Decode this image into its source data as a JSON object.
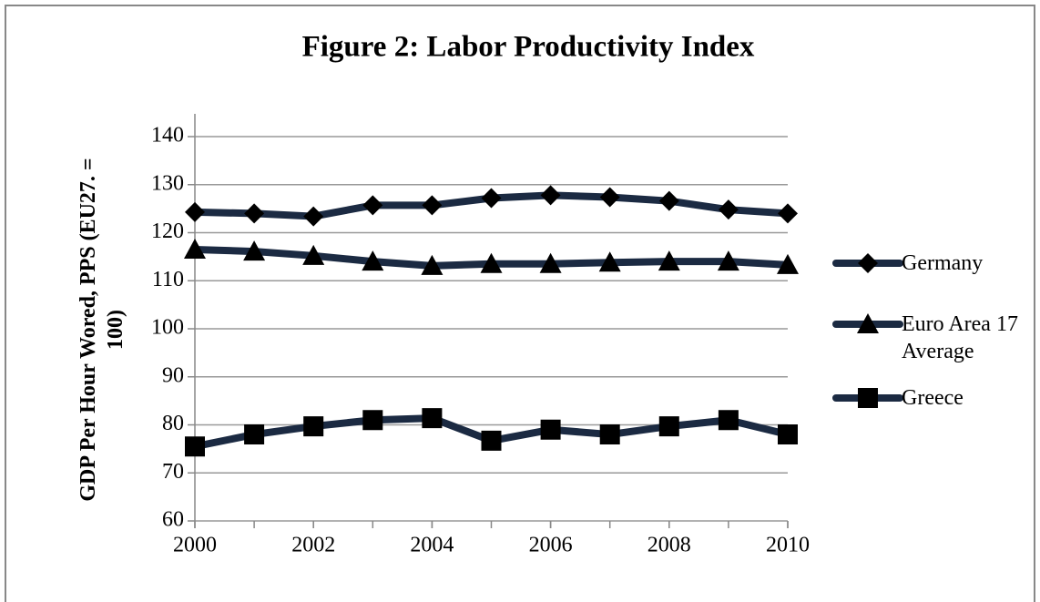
{
  "chart_data": {
    "type": "line",
    "title": "Figure 2: Labor Productivity Index",
    "ylabel": "GDP Per Hour Wored, PPS (EU27. = 100)",
    "x": [
      2000,
      2001,
      2002,
      2003,
      2004,
      2005,
      2006,
      2007,
      2008,
      2009,
      2010
    ],
    "series": [
      {
        "name": "Germany",
        "color": "#1b2a42",
        "marker": "diamond",
        "values": [
          124.3,
          124,
          123.4,
          125.7,
          125.7,
          127.2,
          127.8,
          127.4,
          126.6,
          124.8,
          124
        ]
      },
      {
        "name": "Euro Area 17 Average",
        "color": "#1b2a42",
        "marker": "triangle",
        "values": [
          116.5,
          116.1,
          115.2,
          114,
          113.1,
          113.5,
          113.5,
          113.8,
          114,
          114,
          113.3
        ]
      },
      {
        "name": "Greece",
        "color": "#1b2a42",
        "marker": "square",
        "values": [
          75.5,
          78,
          79.7,
          81,
          81.4,
          76.7,
          79,
          78,
          79.7,
          81,
          78
        ]
      }
    ],
    "xlim": [
      2000,
      2010
    ],
    "xticks": [
      2000,
      2002,
      2004,
      2006,
      2008,
      2010
    ],
    "ylim": [
      60,
      140
    ],
    "yticks": [
      60,
      70,
      80,
      90,
      100,
      110,
      120,
      130,
      140
    ],
    "grid": true,
    "legend": "right"
  }
}
